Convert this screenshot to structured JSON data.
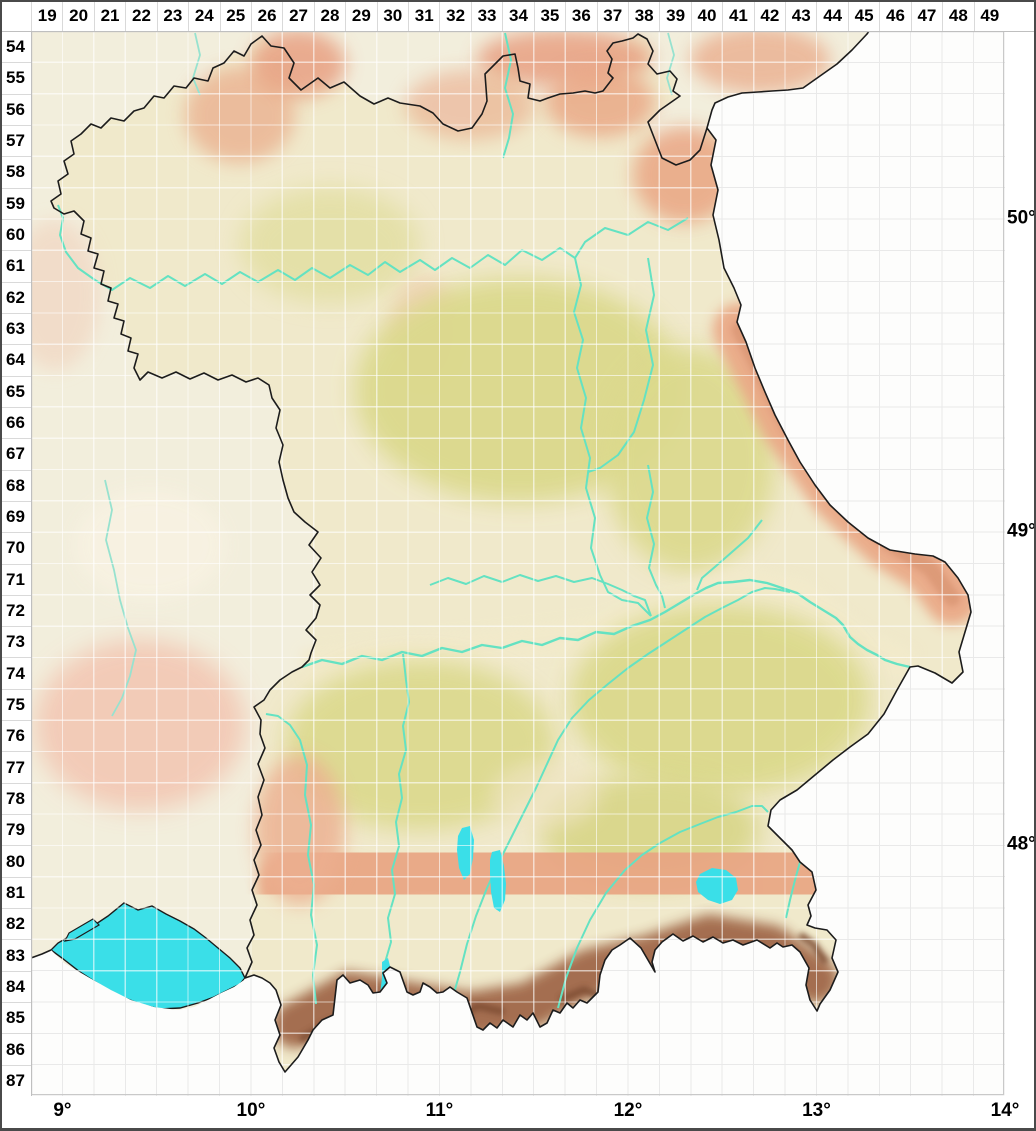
{
  "map_grid": {
    "columns": [
      "19",
      "20",
      "21",
      "22",
      "23",
      "24",
      "25",
      "26",
      "27",
      "28",
      "29",
      "30",
      "31",
      "32",
      "33",
      "34",
      "35",
      "36",
      "37",
      "38",
      "39",
      "40",
      "41",
      "42",
      "43",
      "44",
      "45",
      "46",
      "47",
      "48",
      "49"
    ],
    "rows": [
      "54",
      "55",
      "56",
      "57",
      "58",
      "59",
      "60",
      "61",
      "62",
      "63",
      "64",
      "65",
      "66",
      "67",
      "68",
      "69",
      "70",
      "71",
      "72",
      "73",
      "74",
      "75",
      "76",
      "77",
      "78",
      "79",
      "80",
      "81",
      "82",
      "83",
      "84",
      "85",
      "86",
      "87"
    ],
    "longitude_labels": [
      {
        "text": "9°",
        "boundary": 1
      },
      {
        "text": "10°",
        "boundary": 7
      },
      {
        "text": "11°",
        "boundary": 13
      },
      {
        "text": "12°",
        "boundary": 19
      },
      {
        "text": "13°",
        "boundary": 25
      },
      {
        "text": "14°",
        "boundary": 31
      }
    ],
    "latitude_labels": [
      {
        "text": "50°",
        "boundary": 6
      },
      {
        "text": "49°",
        "boundary": 16
      },
      {
        "text": "48°",
        "boundary": 26
      }
    ]
  },
  "colors": {
    "background": "#ffffff",
    "frame": "#4a4a4a",
    "label_text": "#000000",
    "grid_outside": "#e9e9e9",
    "grid_inside": "#ffffff",
    "border_line": "#1c1c1c",
    "lake": "#3adfe8",
    "river": "#64e2c2",
    "river_outside": "#97e2cf",
    "lowland": "#f0e9cb",
    "outside_land": "#f2eedc",
    "olive": "#dbd98c",
    "salmon": "#e9a583",
    "red_hills": "#e79b7d",
    "alps_brown": "#a06749",
    "alps_ridge": "#7c4b33",
    "alb_pink": "#f3c5b1"
  }
}
